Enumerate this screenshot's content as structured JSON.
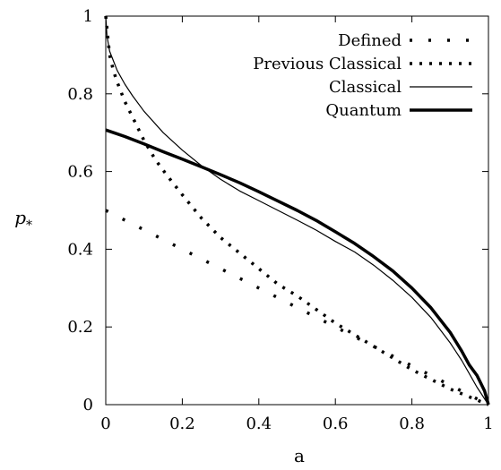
{
  "chart_data": {
    "type": "line",
    "xlabel": "a",
    "ylabel_main": "p",
    "ylabel_sub": "*",
    "xlim": [
      0,
      1
    ],
    "ylim": [
      0,
      1
    ],
    "xticks": [
      "0",
      "0.2",
      "0.4",
      "0.6",
      "0.8",
      "1"
    ],
    "yticks": [
      "0",
      "0.2",
      "0.4",
      "0.6",
      "0.8",
      "1"
    ],
    "xtick_values": [
      0,
      0.2,
      0.4,
      0.6,
      0.8,
      1
    ],
    "ytick_values": [
      0,
      0.2,
      0.4,
      0.6,
      0.8,
      1
    ],
    "grid": false,
    "legend_position": "top-right",
    "series": [
      {
        "name": "Defined",
        "style": "sparse-dots",
        "x": [
          0.0,
          0.05,
          0.1,
          0.15,
          0.2,
          0.25,
          0.3,
          0.35,
          0.4,
          0.45,
          0.5,
          0.55,
          0.6,
          0.65,
          0.7,
          0.75,
          0.8,
          0.85,
          0.9,
          0.95,
          1.0
        ],
        "y": [
          0.5,
          0.475,
          0.45,
          0.425,
          0.4,
          0.375,
          0.35,
          0.325,
          0.3,
          0.275,
          0.25,
          0.225,
          0.2,
          0.175,
          0.15,
          0.125,
          0.1,
          0.075,
          0.05,
          0.025,
          0.0
        ]
      },
      {
        "name": "Previous Classical",
        "style": "dense-dots",
        "x": [
          0.0,
          0.01,
          0.02,
          0.03,
          0.05,
          0.07,
          0.1,
          0.13,
          0.16,
          0.2,
          0.25,
          0.3,
          0.35,
          0.4,
          0.45,
          0.5,
          0.55,
          0.6,
          0.65,
          0.7,
          0.75,
          0.8,
          0.85,
          0.9,
          0.95,
          1.0
        ],
        "y": [
          1.0,
          0.9,
          0.86,
          0.83,
          0.78,
          0.74,
          0.68,
          0.63,
          0.59,
          0.54,
          0.48,
          0.43,
          0.39,
          0.35,
          0.31,
          0.28,
          0.245,
          0.21,
          0.18,
          0.15,
          0.12,
          0.09,
          0.065,
          0.04,
          0.02,
          0.0
        ]
      },
      {
        "name": "Classical",
        "style": "thin-solid",
        "x": [
          0.0,
          0.003,
          0.01,
          0.02,
          0.03,
          0.05,
          0.07,
          0.1,
          0.15,
          0.2,
          0.25,
          0.3,
          0.35,
          0.4,
          0.45,
          0.5,
          0.55,
          0.6,
          0.65,
          0.7,
          0.75,
          0.8,
          0.85,
          0.9,
          0.93,
          0.95,
          0.97,
          0.98,
          0.99,
          1.0
        ],
        "y": [
          1.0,
          0.95,
          0.91,
          0.885,
          0.86,
          0.825,
          0.795,
          0.755,
          0.7,
          0.655,
          0.615,
          0.58,
          0.55,
          0.525,
          0.5,
          0.475,
          0.449,
          0.42,
          0.393,
          0.359,
          0.32,
          0.276,
          0.224,
          0.159,
          0.114,
          0.08,
          0.045,
          0.03,
          0.015,
          0.0
        ]
      },
      {
        "name": "Quantum",
        "style": "thick-solid",
        "x": [
          0.0,
          0.05,
          0.1,
          0.15,
          0.2,
          0.25,
          0.3,
          0.35,
          0.4,
          0.45,
          0.5,
          0.55,
          0.6,
          0.65,
          0.7,
          0.75,
          0.8,
          0.85,
          0.9,
          0.93,
          0.95,
          0.97,
          0.98,
          0.99,
          1.0
        ],
        "y": [
          0.707,
          0.69,
          0.671,
          0.651,
          0.632,
          0.612,
          0.592,
          0.571,
          0.548,
          0.524,
          0.5,
          0.474,
          0.445,
          0.415,
          0.381,
          0.344,
          0.3,
          0.249,
          0.186,
          0.138,
          0.102,
          0.075,
          0.055,
          0.035,
          0.0
        ]
      }
    ]
  }
}
